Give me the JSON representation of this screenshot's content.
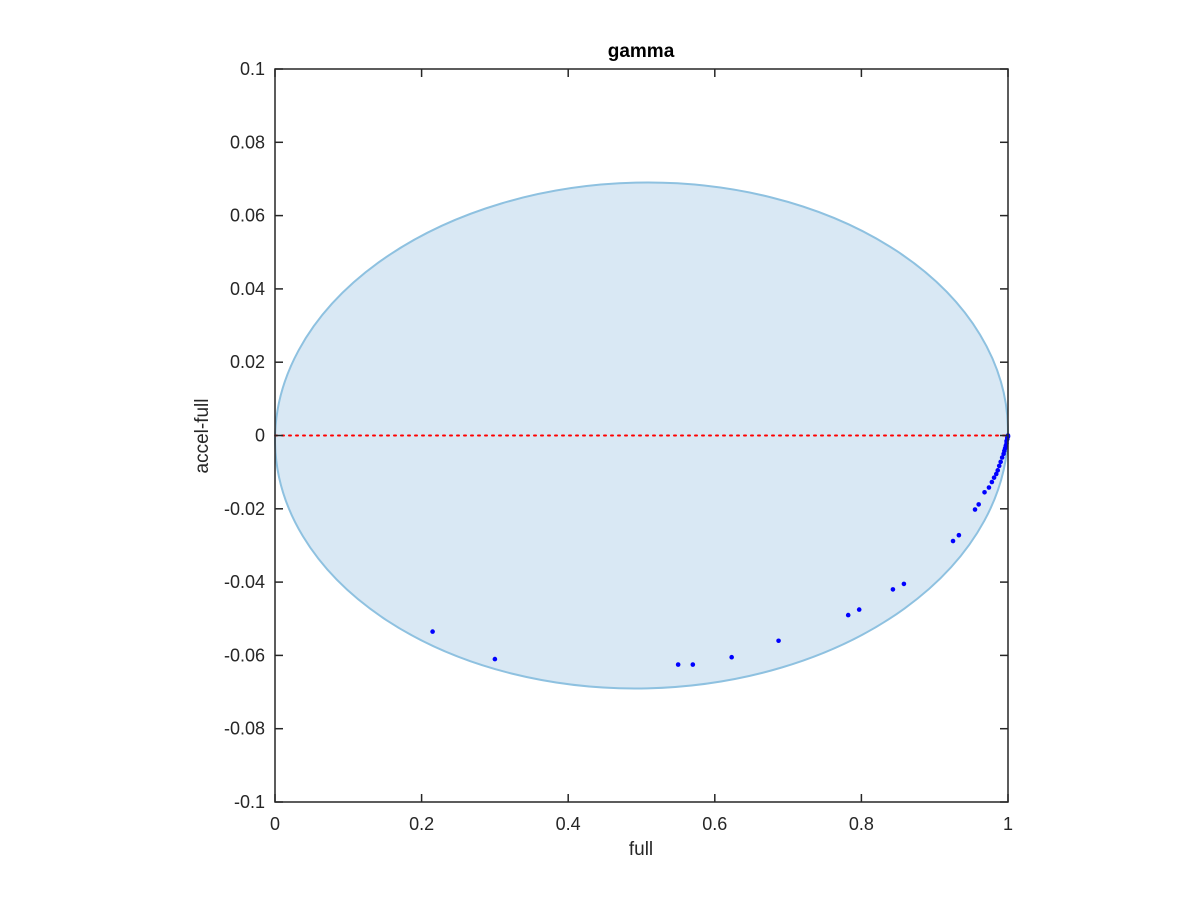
{
  "chart_data": {
    "type": "scatter",
    "title": "gamma",
    "xlabel": "full",
    "ylabel": "accel-full",
    "xlim": [
      0,
      1
    ],
    "ylim": [
      -0.1,
      0.1
    ],
    "x_ticks": [
      0,
      0.2,
      0.4,
      0.6,
      0.8,
      1
    ],
    "x_tick_labels": [
      "0",
      "0.2",
      "0.4",
      "0.6",
      "0.8",
      "1"
    ],
    "y_ticks": [
      0.1,
      0.08,
      0.06,
      0.04,
      0.02,
      0,
      -0.02,
      -0.04,
      -0.06,
      -0.08,
      -0.1
    ],
    "y_tick_labels": [
      "0.1",
      "0.08",
      "0.06",
      "0.04",
      "0.02",
      "0",
      "-0.02",
      "-0.04",
      "-0.06",
      "-0.08",
      "-0.1"
    ],
    "grid": false,
    "region": {
      "shape": "ellipse",
      "center": [
        0.5,
        0.0
      ],
      "semi_axes": [
        0.5,
        0.069
      ],
      "tilt_deg": -1.3,
      "fill": "#d9e8f4",
      "stroke": "#8ec1e0"
    },
    "reference_line": {
      "y": 0,
      "color": "#ff0000",
      "style": "dotted"
    },
    "points_color": "#0000ff",
    "points": [
      {
        "x": 0.215,
        "y": -0.0535
      },
      {
        "x": 0.3,
        "y": -0.061
      },
      {
        "x": 0.55,
        "y": -0.0625
      },
      {
        "x": 0.57,
        "y": -0.0625
      },
      {
        "x": 0.623,
        "y": -0.0605
      },
      {
        "x": 0.687,
        "y": -0.056
      },
      {
        "x": 0.782,
        "y": -0.049
      },
      {
        "x": 0.797,
        "y": -0.0475
      },
      {
        "x": 0.843,
        "y": -0.042
      },
      {
        "x": 0.858,
        "y": -0.0405
      },
      {
        "x": 0.925,
        "y": -0.0288
      },
      {
        "x": 0.933,
        "y": -0.0272
      },
      {
        "x": 0.955,
        "y": -0.0202
      },
      {
        "x": 0.96,
        "y": -0.0188
      },
      {
        "x": 0.968,
        "y": -0.0155
      },
      {
        "x": 0.974,
        "y": -0.0142
      },
      {
        "x": 0.978,
        "y": -0.0127
      },
      {
        "x": 0.981,
        "y": -0.0115
      },
      {
        "x": 0.984,
        "y": -0.0105
      },
      {
        "x": 0.986,
        "y": -0.0095
      },
      {
        "x": 0.988,
        "y": -0.0083
      },
      {
        "x": 0.99,
        "y": -0.0072
      },
      {
        "x": 0.992,
        "y": -0.006
      },
      {
        "x": 0.994,
        "y": -0.005
      },
      {
        "x": 0.995,
        "y": -0.0042
      },
      {
        "x": 0.996,
        "y": -0.0035
      },
      {
        "x": 0.997,
        "y": -0.0028
      },
      {
        "x": 0.998,
        "y": -0.0021
      },
      {
        "x": 0.998,
        "y": -0.0015
      },
      {
        "x": 0.999,
        "y": -0.001
      },
      {
        "x": 0.999,
        "y": -0.0006
      },
      {
        "x": 1.0,
        "y": -0.0003
      },
      {
        "x": 1.0,
        "y": 0.0
      }
    ]
  }
}
